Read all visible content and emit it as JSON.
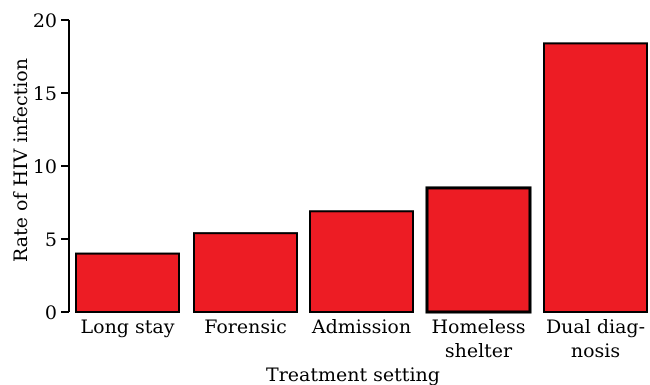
{
  "chart_data": {
    "type": "bar",
    "title": "",
    "xlabel": "Treatment setting",
    "ylabel": "Rate of HIV infection",
    "ylim": [
      0,
      20
    ],
    "yticks": [
      0,
      5,
      10,
      15,
      20
    ],
    "categories": [
      [
        "Long stay"
      ],
      [
        "Forensic"
      ],
      [
        "Admission"
      ],
      [
        "Homeless",
        "shelter"
      ],
      [
        "Dual diag-",
        "nosis"
      ]
    ],
    "values": [
      4.0,
      5.4,
      6.9,
      8.5,
      18.4
    ],
    "bar_color": "#ed1c24",
    "grid": false
  }
}
